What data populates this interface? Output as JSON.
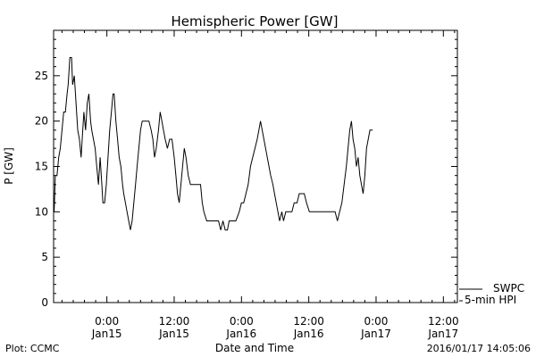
{
  "chart_data": {
    "type": "line",
    "title": "Hemispheric Power [GW]",
    "xlabel": "Date and Time",
    "ylabel": "P [GW]",
    "ylim": [
      0,
      30
    ],
    "y_ticks": [
      0,
      5,
      10,
      15,
      20,
      25
    ],
    "x_range_hours": [
      -9.5,
      62.5
    ],
    "x_tick_hours": [
      0,
      12,
      24,
      36,
      48,
      60
    ],
    "x_tick_labels": [
      [
        "0:00",
        "Jan15"
      ],
      [
        "12:00",
        "Jan15"
      ],
      [
        "0:00",
        "Jan16"
      ],
      [
        "12:00",
        "Jan16"
      ],
      [
        "0:00",
        "Jan17"
      ],
      [
        "12:00",
        "Jan17"
      ]
    ],
    "grid": false,
    "legend": {
      "placement": "bottom-right",
      "entries": [
        "SWPC",
        "5-min HPI"
      ]
    },
    "series": [
      {
        "values": [
          [
            -9.4,
            10
          ],
          [
            -9.2,
            14
          ],
          [
            -8.9,
            14
          ],
          [
            -8.6,
            16
          ],
          [
            -8.3,
            17
          ],
          [
            -8.0,
            19
          ],
          [
            -7.7,
            21
          ],
          [
            -7.4,
            21
          ],
          [
            -7.1,
            23
          ],
          [
            -6.9,
            24
          ],
          [
            -6.6,
            27
          ],
          [
            -6.3,
            27
          ],
          [
            -6.1,
            24
          ],
          [
            -5.8,
            25
          ],
          [
            -5.5,
            22
          ],
          [
            -5.2,
            19
          ],
          [
            -4.9,
            18
          ],
          [
            -4.6,
            16
          ],
          [
            -4.4,
            18
          ],
          [
            -4.1,
            21
          ],
          [
            -3.8,
            19
          ],
          [
            -3.5,
            22
          ],
          [
            -3.2,
            23
          ],
          [
            -2.9,
            20
          ],
          [
            -2.7,
            19
          ],
          [
            -2.4,
            18
          ],
          [
            -2.1,
            17
          ],
          [
            -1.8,
            15
          ],
          [
            -1.5,
            13
          ],
          [
            -1.2,
            16
          ],
          [
            -0.9,
            13
          ],
          [
            -0.7,
            11
          ],
          [
            -0.4,
            11
          ],
          [
            -0.1,
            13
          ],
          [
            0.2,
            16
          ],
          [
            0.5,
            19
          ],
          [
            0.8,
            21
          ],
          [
            1.1,
            23
          ],
          [
            1.3,
            23
          ],
          [
            1.6,
            20
          ],
          [
            1.9,
            18
          ],
          [
            2.2,
            16
          ],
          [
            2.5,
            15
          ],
          [
            2.8,
            13
          ],
          [
            3.0,
            12
          ],
          [
            3.3,
            11
          ],
          [
            3.6,
            10
          ],
          [
            3.9,
            9
          ],
          [
            4.2,
            8
          ],
          [
            4.5,
            9
          ],
          [
            4.8,
            11
          ],
          [
            5.1,
            13
          ],
          [
            5.4,
            15
          ],
          [
            5.7,
            17
          ],
          [
            6.0,
            19
          ],
          [
            6.3,
            20
          ],
          [
            6.7,
            20
          ],
          [
            7.1,
            20
          ],
          [
            7.5,
            20
          ],
          [
            7.9,
            19
          ],
          [
            8.2,
            18
          ],
          [
            8.5,
            16
          ],
          [
            8.8,
            17
          ],
          [
            9.2,
            19
          ],
          [
            9.5,
            21
          ],
          [
            9.8,
            20
          ],
          [
            10.1,
            19
          ],
          [
            10.4,
            18
          ],
          [
            10.8,
            17
          ],
          [
            11.2,
            18
          ],
          [
            11.6,
            18
          ],
          [
            12.0,
            16
          ],
          [
            12.3,
            14
          ],
          [
            12.6,
            12
          ],
          [
            12.9,
            11
          ],
          [
            13.2,
            13
          ],
          [
            13.5,
            15
          ],
          [
            13.8,
            17
          ],
          [
            14.1,
            16
          ],
          [
            14.5,
            14
          ],
          [
            14.9,
            13
          ],
          [
            15.5,
            13
          ],
          [
            16.1,
            13
          ],
          [
            16.7,
            13
          ],
          [
            17.0,
            11
          ],
          [
            17.3,
            10
          ],
          [
            17.8,
            9
          ],
          [
            18.5,
            9
          ],
          [
            19.2,
            9
          ],
          [
            19.9,
            9
          ],
          [
            20.3,
            8
          ],
          [
            20.7,
            9
          ],
          [
            21.1,
            8
          ],
          [
            21.5,
            8
          ],
          [
            21.8,
            9
          ],
          [
            22.4,
            9
          ],
          [
            23.0,
            9
          ],
          [
            23.6,
            10
          ],
          [
            24.0,
            11
          ],
          [
            24.4,
            11
          ],
          [
            24.8,
            12
          ],
          [
            25.2,
            13
          ],
          [
            25.6,
            15
          ],
          [
            26.0,
            16
          ],
          [
            26.4,
            17
          ],
          [
            26.8,
            18
          ],
          [
            27.1,
            19
          ],
          [
            27.4,
            20
          ],
          [
            27.7,
            19
          ],
          [
            28.0,
            18
          ],
          [
            28.3,
            17
          ],
          [
            28.6,
            16
          ],
          [
            28.9,
            15
          ],
          [
            29.2,
            14
          ],
          [
            29.6,
            13
          ],
          [
            29.9,
            12
          ],
          [
            30.2,
            11
          ],
          [
            30.5,
            10
          ],
          [
            30.8,
            9
          ],
          [
            31.2,
            10
          ],
          [
            31.5,
            9
          ],
          [
            31.9,
            10
          ],
          [
            32.5,
            10
          ],
          [
            33.0,
            10
          ],
          [
            33.4,
            11
          ],
          [
            33.9,
            11
          ],
          [
            34.3,
            12
          ],
          [
            35.2,
            12
          ],
          [
            35.6,
            11
          ],
          [
            36.1,
            10
          ],
          [
            36.6,
            10
          ],
          [
            37.2,
            10
          ],
          [
            37.8,
            10
          ],
          [
            38.4,
            10
          ],
          [
            39.0,
            10
          ],
          [
            39.6,
            10
          ],
          [
            40.2,
            10
          ],
          [
            40.7,
            10
          ],
          [
            41.1,
            9
          ],
          [
            41.5,
            10
          ],
          [
            41.9,
            11
          ],
          [
            42.3,
            13
          ],
          [
            42.7,
            15
          ],
          [
            43.0,
            17
          ],
          [
            43.3,
            19
          ],
          [
            43.6,
            20
          ],
          [
            43.9,
            18
          ],
          [
            44.2,
            17
          ],
          [
            44.5,
            15
          ],
          [
            44.8,
            16
          ],
          [
            45.1,
            14
          ],
          [
            45.4,
            13
          ],
          [
            45.7,
            12
          ],
          [
            46.0,
            14
          ],
          [
            46.3,
            17
          ],
          [
            46.6,
            18
          ],
          [
            46.9,
            19
          ],
          [
            47.2,
            19
          ],
          [
            47.4,
            19
          ]
        ]
      }
    ]
  },
  "footer": {
    "left": "Plot: CCMC",
    "right": "2016/01/17 14:05:06"
  },
  "colors": {
    "line": "#000000",
    "background": "#ffffff"
  }
}
